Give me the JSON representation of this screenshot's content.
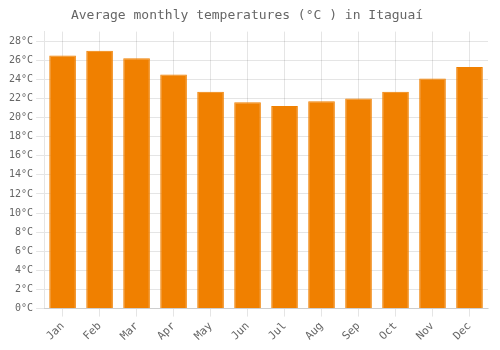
{
  "chart_data": {
    "type": "bar",
    "title": "Average monthly temperatures (°C ) in Itaguaí",
    "categories": [
      "Jan",
      "Feb",
      "Mar",
      "Apr",
      "May",
      "Jun",
      "Jul",
      "Aug",
      "Sep",
      "Oct",
      "Nov",
      "Dec"
    ],
    "values": [
      26.5,
      27.0,
      26.2,
      24.5,
      22.7,
      21.6,
      21.2,
      21.7,
      22.0,
      22.7,
      24.1,
      25.3
    ],
    "color": "#F08000",
    "ylim": [
      0,
      29
    ],
    "yticks": [
      {
        "value": 0,
        "label": "0°C"
      },
      {
        "value": 2,
        "label": "2°C"
      },
      {
        "value": 4,
        "label": "4°C"
      },
      {
        "value": 6,
        "label": "6°C"
      },
      {
        "value": 8,
        "label": "8°C"
      },
      {
        "value": 10,
        "label": "10°C"
      },
      {
        "value": 12,
        "label": "12°C"
      },
      {
        "value": 14,
        "label": "14°C"
      },
      {
        "value": 16,
        "label": "16°C"
      },
      {
        "value": 18,
        "label": "18°C"
      },
      {
        "value": 20,
        "label": "20°C"
      },
      {
        "value": 22,
        "label": "22°C"
      },
      {
        "value": 24,
        "label": "24°C"
      },
      {
        "value": 26,
        "label": "26°C"
      },
      {
        "value": 28,
        "label": "28°C"
      }
    ],
    "grid": true
  }
}
